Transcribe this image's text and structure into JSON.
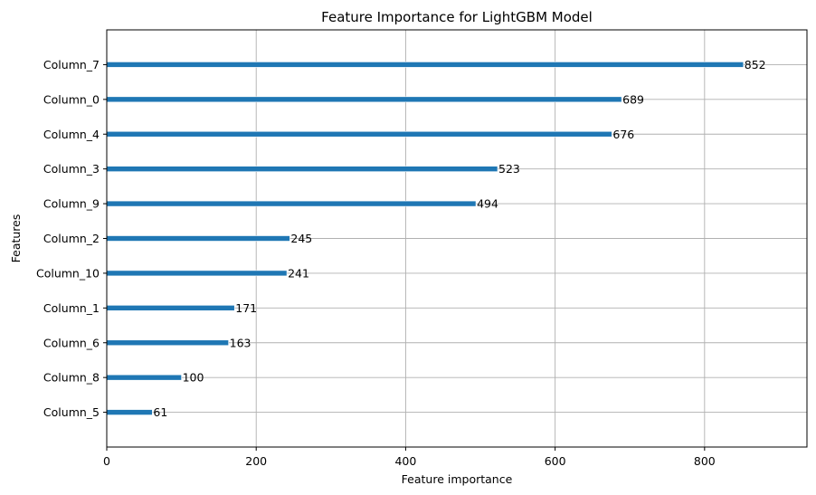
{
  "chart_data": {
    "type": "bar",
    "orientation": "horizontal",
    "title": "Feature Importance for LightGBM Model",
    "xlabel": "Feature importance",
    "ylabel": "Features",
    "xlim": [
      0,
      937
    ],
    "xticks": [
      0,
      200,
      400,
      600,
      800
    ],
    "grid": true,
    "bar_color": "#1f77b4",
    "categories": [
      "Column_7",
      "Column_0",
      "Column_4",
      "Column_3",
      "Column_9",
      "Column_2",
      "Column_10",
      "Column_1",
      "Column_6",
      "Column_8",
      "Column_5"
    ],
    "values": [
      852,
      689,
      676,
      523,
      494,
      245,
      241,
      171,
      163,
      100,
      61
    ]
  }
}
